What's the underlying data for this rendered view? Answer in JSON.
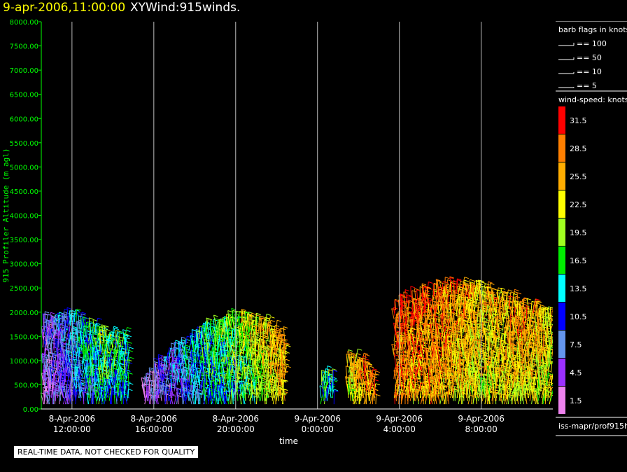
{
  "header": {
    "date_time": "9-apr-2006,11:00:00",
    "product": "XYWind:915winds."
  },
  "chart_data": {
    "type": "scatter",
    "title": "XYWind:915winds.",
    "xlabel": "time",
    "ylabel": "915 Profiler Altitude (m agl)",
    "ylim": [
      0,
      8000
    ],
    "yticks": [
      "0.00",
      "500.00",
      "1000.00",
      "1500.00",
      "2000.00",
      "2500.00",
      "3000.00",
      "3500.00",
      "4000.00",
      "4500.00",
      "5000.00",
      "5500.00",
      "6000.00",
      "6500.00",
      "7000.00",
      "7500.00",
      "8000.00"
    ],
    "xlim_hours": [
      10.5,
      35.5
    ],
    "xticks": [
      {
        "hour": 12,
        "date": "8-Apr-2006",
        "time": "12:00:00"
      },
      {
        "hour": 16,
        "date": "8-Apr-2006",
        "time": "16:00:00"
      },
      {
        "hour": 20,
        "date": "8-Apr-2006",
        "time": "20:00:00"
      },
      {
        "hour": 24,
        "date": "9-Apr-2006",
        "time": "0:00:00"
      },
      {
        "hour": 28,
        "date": "9-Apr-2006",
        "time": "4:00:00"
      },
      {
        "hour": 32,
        "date": "9-Apr-2006",
        "time": "8:00:00"
      }
    ],
    "grid": "vertical lines at time ticks",
    "axis_color": "#00ff00",
    "series": [
      {
        "x_hours": [
          10.6,
          12.0,
          13.5,
          14.7
        ],
        "top_altitude_m": [
          1850,
          1850,
          1550,
          1400
        ],
        "typical_speed_kt": [
          6,
          11,
          18,
          16
        ]
      },
      {
        "x_hours": [
          15.5,
          17.0,
          18.5,
          20.0,
          21.5,
          22.4
        ],
        "top_altitude_m": [
          500,
          1200,
          1600,
          1850,
          1700,
          1400
        ],
        "typical_speed_kt": [
          5,
          10,
          16,
          19,
          24,
          28
        ]
      },
      {
        "x_hours": [
          24.2,
          24.8
        ],
        "top_altitude_m": [
          700,
          550
        ],
        "typical_speed_kt": [
          18,
          16
        ]
      },
      {
        "x_hours": [
          25.5,
          26.1,
          26.8
        ],
        "top_altitude_m": [
          1000,
          1000,
          600
        ],
        "typical_speed_kt": [
          24,
          27,
          30
        ]
      },
      {
        "x_hours": [
          27.8,
          30.0,
          32.0,
          34.0,
          35.4
        ],
        "top_altitude_m": [
          2100,
          2500,
          2450,
          2100,
          1900
        ],
        "typical_speed_kt": [
          30,
          29,
          25,
          27,
          24
        ]
      }
    ]
  },
  "legend": {
    "barb_title": "barb flags in knots",
    "barb_items": [
      {
        "label": "== 100"
      },
      {
        "label": "== 50"
      },
      {
        "label": "== 10"
      },
      {
        "label": "== 5"
      }
    ],
    "speed_title": "wind-speed: knots",
    "speed_items": [
      {
        "label": "31.5",
        "color": "#ff0000"
      },
      {
        "label": "28.5",
        "color": "#ff7f00"
      },
      {
        "label": "25.5",
        "color": "#ffad00"
      },
      {
        "label": "22.5",
        "color": "#ffff00"
      },
      {
        "label": "19.5",
        "color": "#a0ff20"
      },
      {
        "label": "16.5",
        "color": "#00ee00"
      },
      {
        "label": "13.5",
        "color": "#00ffff"
      },
      {
        "label": "10.5",
        "color": "#0000ff"
      },
      {
        "label": "7.5",
        "color": "#6495ed"
      },
      {
        "label": "4.5",
        "color": "#9b30ff"
      },
      {
        "label": "1.5",
        "color": "#ee82ee"
      }
    ],
    "source": "iss-mapr/prof915h"
  },
  "footer": {
    "qc_note": "REAL-TIME DATA, NOT CHECKED FOR QUALITY"
  }
}
